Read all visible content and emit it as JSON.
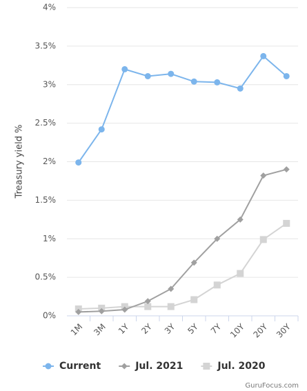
{
  "chart_data": {
    "type": "line",
    "y_label": "Treasury yield %",
    "credit": "GuruFocus.com",
    "categories": [
      "1M",
      "3M",
      "1Y",
      "2Y",
      "3Y",
      "5Y",
      "7Y",
      "10Y",
      "20Y",
      "30Y"
    ],
    "series": [
      {
        "name": "Current",
        "color": "#7cb5ec",
        "marker": "circle",
        "values": [
          1.99,
          2.42,
          3.2,
          3.11,
          3.14,
          3.04,
          3.03,
          2.95,
          3.37,
          3.11
        ]
      },
      {
        "name": "Jul. 2021",
        "color": "#a0a0a0",
        "marker": "diamond",
        "values": [
          0.05,
          0.06,
          0.08,
          0.19,
          0.35,
          0.69,
          1.0,
          1.25,
          1.82,
          1.9
        ]
      },
      {
        "name": "Jul. 2020",
        "color": "#d4d4d4",
        "marker": "square",
        "values": [
          0.09,
          0.1,
          0.12,
          0.12,
          0.12,
          0.21,
          0.4,
          0.55,
          0.99,
          1.2
        ]
      }
    ],
    "ylim": [
      0,
      4
    ],
    "yticks": [
      {
        "value": 0,
        "label": "0%"
      },
      {
        "value": 0.5,
        "label": "0.5%"
      },
      {
        "value": 1,
        "label": "1%"
      },
      {
        "value": 1.5,
        "label": "1.5%"
      },
      {
        "value": 2,
        "label": "2%"
      },
      {
        "value": 2.5,
        "label": "2.5%"
      },
      {
        "value": 3,
        "label": "3%"
      },
      {
        "value": 3.5,
        "label": "3.5%"
      },
      {
        "value": 4,
        "label": "4%"
      }
    ],
    "grid": true,
    "legend": "bottom"
  }
}
